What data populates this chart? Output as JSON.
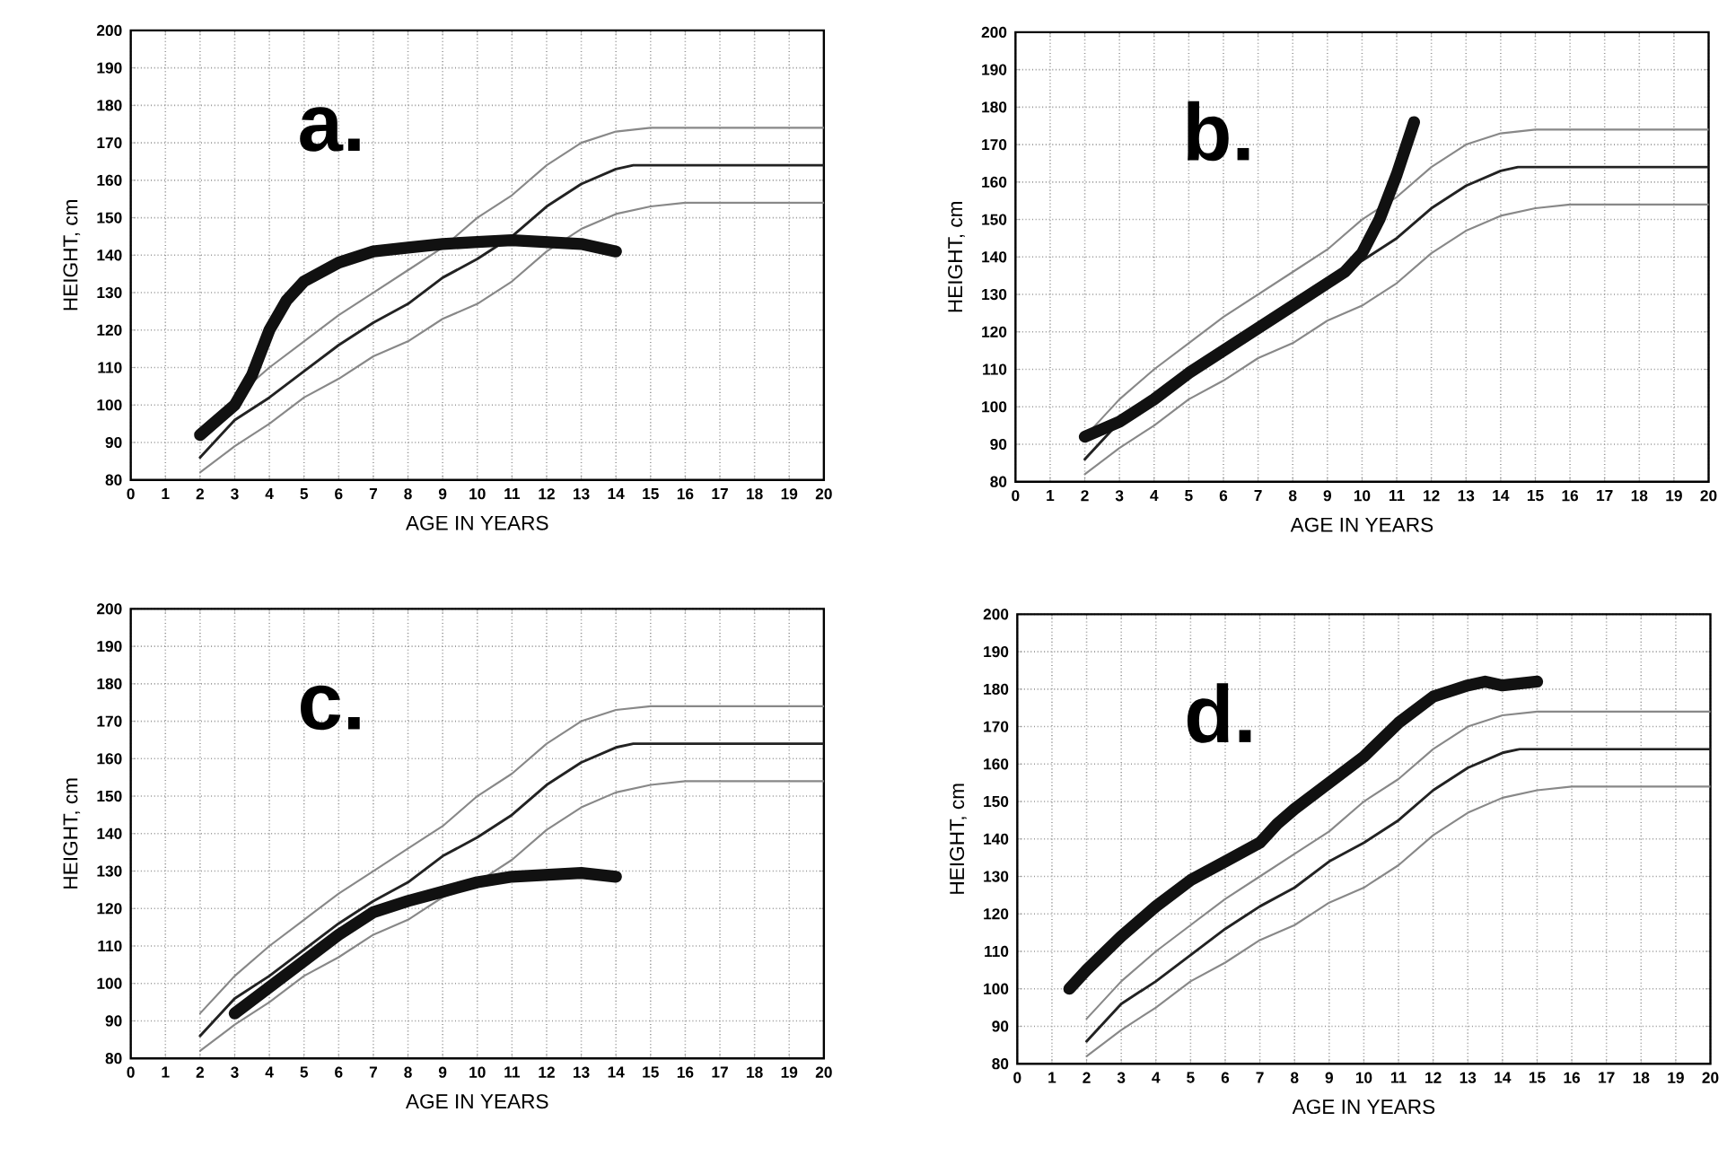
{
  "chart_data": [
    {
      "type": "line",
      "annotations": [
        "a."
      ],
      "xlabel": "AGE IN YEARS",
      "ylabel": "HEIGHT, cm",
      "xlim": [
        0,
        20
      ],
      "ylim": [
        80,
        200
      ],
      "xticks": [
        0,
        1,
        2,
        3,
        4,
        5,
        6,
        7,
        8,
        9,
        10,
        11,
        12,
        13,
        14,
        15,
        16,
        17,
        18,
        19,
        20
      ],
      "yticks": [
        80,
        90,
        100,
        110,
        120,
        130,
        140,
        150,
        160,
        170,
        180,
        190,
        200
      ],
      "grid": true,
      "series": [
        {
          "color": "#888888",
          "x": [
            2,
            3,
            4,
            5,
            6,
            7,
            8,
            9,
            10,
            11,
            12,
            13,
            14,
            15,
            16,
            20
          ],
          "values": [
            92,
            102,
            110,
            117,
            124,
            130,
            136,
            142,
            150,
            156,
            164,
            170,
            173,
            174,
            174,
            174
          ]
        },
        {
          "color": "#222222",
          "x": [
            2,
            3,
            4,
            5,
            6,
            7,
            8,
            9,
            10,
            11,
            12,
            13,
            14,
            14.5,
            20
          ],
          "values": [
            86,
            96,
            102,
            109,
            116,
            122,
            127,
            134,
            139,
            145,
            153,
            159,
            163,
            164,
            164
          ]
        },
        {
          "color": "#888888",
          "x": [
            2,
            3,
            4,
            5,
            6,
            7,
            8,
            9,
            10,
            11,
            12,
            13,
            14,
            15,
            16,
            20
          ],
          "values": [
            82,
            89,
            95,
            102,
            107,
            113,
            117,
            123,
            127,
            133,
            141,
            147,
            151,
            153,
            154,
            154
          ]
        },
        {
          "color": "#111111",
          "x": [
            2,
            3,
            3.5,
            4,
            4.5,
            5,
            6,
            7,
            8,
            9,
            10,
            11,
            12,
            13,
            13.5,
            14
          ],
          "values": [
            92,
            100,
            108,
            120,
            128,
            133,
            138,
            141,
            142,
            143,
            143.5,
            144,
            143.5,
            143,
            142,
            141
          ]
        }
      ]
    },
    {
      "type": "line",
      "annotations": [
        "b."
      ],
      "xlabel": "AGE IN YEARS",
      "ylabel": "HEIGHT, cm",
      "xlim": [
        0,
        20
      ],
      "ylim": [
        80,
        200
      ],
      "xticks": [
        0,
        1,
        2,
        3,
        4,
        5,
        6,
        7,
        8,
        9,
        10,
        11,
        12,
        13,
        14,
        15,
        16,
        17,
        18,
        19,
        20
      ],
      "yticks": [
        80,
        90,
        100,
        110,
        120,
        130,
        140,
        150,
        160,
        170,
        180,
        190,
        200
      ],
      "grid": true,
      "series": [
        {
          "color": "#888888",
          "x": [
            2,
            3,
            4,
            5,
            6,
            7,
            8,
            9,
            10,
            11,
            12,
            13,
            14,
            15,
            16,
            20
          ],
          "values": [
            92,
            102,
            110,
            117,
            124,
            130,
            136,
            142,
            150,
            156,
            164,
            170,
            173,
            174,
            174,
            174
          ]
        },
        {
          "color": "#222222",
          "x": [
            2,
            3,
            4,
            5,
            6,
            7,
            8,
            9,
            10,
            11,
            12,
            13,
            14,
            14.5,
            20
          ],
          "values": [
            86,
            96,
            102,
            109,
            116,
            122,
            127,
            134,
            139,
            145,
            153,
            159,
            163,
            164,
            164
          ]
        },
        {
          "color": "#888888",
          "x": [
            2,
            3,
            4,
            5,
            6,
            7,
            8,
            9,
            10,
            11,
            12,
            13,
            14,
            15,
            16,
            20
          ],
          "values": [
            82,
            89,
            95,
            102,
            107,
            113,
            117,
            123,
            127,
            133,
            141,
            147,
            151,
            153,
            154,
            154
          ]
        },
        {
          "color": "#111111",
          "x": [
            2,
            3,
            4,
            5,
            6,
            7,
            8,
            9,
            9.5,
            10,
            10.5,
            11,
            11.5
          ],
          "values": [
            92,
            96,
            102,
            109,
            115,
            121,
            127,
            133,
            136,
            141,
            150,
            162,
            176
          ]
        }
      ]
    },
    {
      "type": "line",
      "annotations": [
        "c."
      ],
      "xlabel": "AGE IN YEARS",
      "ylabel": "HEIGHT, cm",
      "xlim": [
        0,
        20
      ],
      "ylim": [
        80,
        200
      ],
      "xticks": [
        0,
        1,
        2,
        3,
        4,
        5,
        6,
        7,
        8,
        9,
        10,
        11,
        12,
        13,
        14,
        15,
        16,
        17,
        18,
        19,
        20
      ],
      "yticks": [
        80,
        90,
        100,
        110,
        120,
        130,
        140,
        150,
        160,
        170,
        180,
        190,
        200
      ],
      "grid": true,
      "series": [
        {
          "color": "#888888",
          "x": [
            2,
            3,
            4,
            5,
            6,
            7,
            8,
            9,
            10,
            11,
            12,
            13,
            14,
            15,
            16,
            20
          ],
          "values": [
            92,
            102,
            110,
            117,
            124,
            130,
            136,
            142,
            150,
            156,
            164,
            170,
            173,
            174,
            174,
            174
          ]
        },
        {
          "color": "#222222",
          "x": [
            2,
            3,
            4,
            5,
            6,
            7,
            8,
            9,
            10,
            11,
            12,
            13,
            14,
            14.5,
            20
          ],
          "values": [
            86,
            96,
            102,
            109,
            116,
            122,
            127,
            134,
            139,
            145,
            153,
            159,
            163,
            164,
            164
          ]
        },
        {
          "color": "#888888",
          "x": [
            2,
            3,
            4,
            5,
            6,
            7,
            8,
            9,
            10,
            11,
            12,
            13,
            14,
            15,
            16,
            20
          ],
          "values": [
            82,
            89,
            95,
            102,
            107,
            113,
            117,
            123,
            127,
            133,
            141,
            147,
            151,
            153,
            154,
            154
          ]
        },
        {
          "color": "#111111",
          "x": [
            3,
            4,
            5,
            6,
            7,
            8,
            9,
            10,
            11,
            12,
            13,
            14
          ],
          "values": [
            92,
            99,
            106,
            113,
            119,
            122,
            124.5,
            127,
            128.5,
            129,
            129.5,
            128.5
          ]
        }
      ]
    },
    {
      "type": "line",
      "annotations": [
        "d."
      ],
      "xlabel": "AGE IN YEARS",
      "ylabel": "HEIGHT, cm",
      "xlim": [
        0,
        20
      ],
      "ylim": [
        80,
        200
      ],
      "xticks": [
        0,
        1,
        2,
        3,
        4,
        5,
        6,
        7,
        8,
        9,
        10,
        11,
        12,
        13,
        14,
        15,
        16,
        17,
        18,
        19,
        20
      ],
      "yticks": [
        80,
        90,
        100,
        110,
        120,
        130,
        140,
        150,
        160,
        170,
        180,
        190,
        200
      ],
      "grid": true,
      "series": [
        {
          "color": "#888888",
          "x": [
            2,
            3,
            4,
            5,
            6,
            7,
            8,
            9,
            10,
            11,
            12,
            13,
            14,
            15,
            16,
            20
          ],
          "values": [
            92,
            102,
            110,
            117,
            124,
            130,
            136,
            142,
            150,
            156,
            164,
            170,
            173,
            174,
            174,
            174
          ]
        },
        {
          "color": "#222222",
          "x": [
            2,
            3,
            4,
            5,
            6,
            7,
            8,
            9,
            10,
            11,
            12,
            13,
            14,
            14.5,
            20
          ],
          "values": [
            86,
            96,
            102,
            109,
            116,
            122,
            127,
            134,
            139,
            145,
            153,
            159,
            163,
            164,
            164
          ]
        },
        {
          "color": "#888888",
          "x": [
            2,
            3,
            4,
            5,
            6,
            7,
            8,
            9,
            10,
            11,
            12,
            13,
            14,
            15,
            16,
            20
          ],
          "values": [
            82,
            89,
            95,
            102,
            107,
            113,
            117,
            123,
            127,
            133,
            141,
            147,
            151,
            153,
            154,
            154
          ]
        },
        {
          "color": "#111111",
          "x": [
            1.5,
            2,
            3,
            4,
            5,
            6,
            7,
            7.5,
            8,
            9,
            10,
            11,
            12,
            13,
            13.5,
            14,
            15
          ],
          "values": [
            100,
            105,
            114,
            122,
            129,
            134,
            139,
            144,
            148,
            155,
            162,
            171,
            178,
            181,
            182,
            181,
            182
          ]
        }
      ]
    }
  ]
}
